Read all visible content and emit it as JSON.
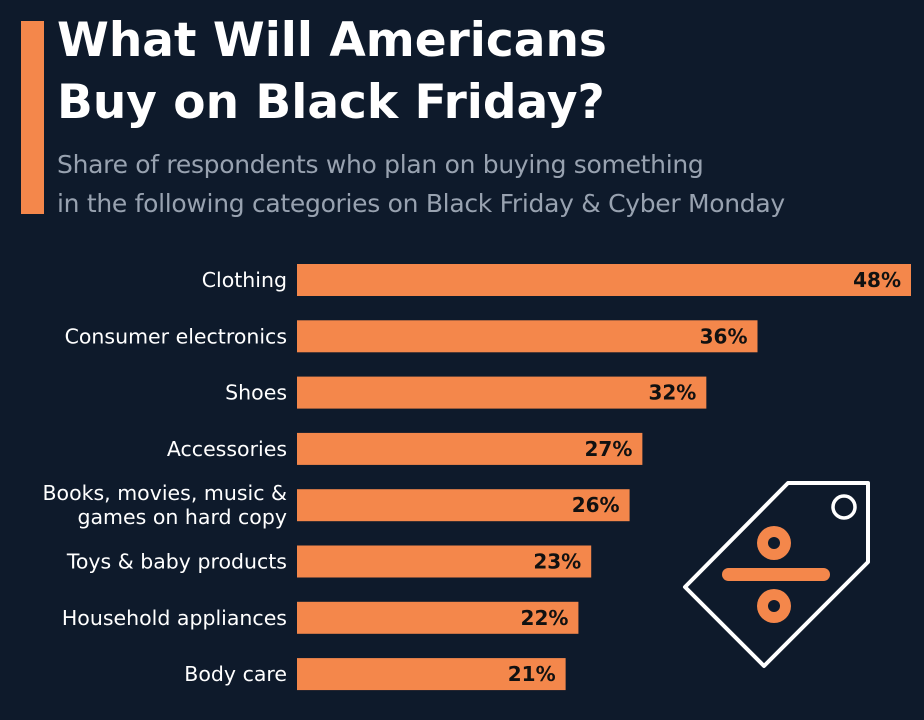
{
  "header": {
    "title_line1": "What Will Americans",
    "title_line2": "Buy on Black Friday?",
    "subtitle_line1": "Share of respondents who plan on buying something",
    "subtitle_line2": "in the following categories on Black Friday & Cyber Monday"
  },
  "colors": {
    "background": "#0e1a2b",
    "accent": "#f4874b",
    "bar": "#f4874b",
    "title": "#ffffff",
    "subtitle": "#98a2b0"
  },
  "icon": {
    "name": "price-tag-percent-icon"
  },
  "chart_data": {
    "type": "bar",
    "orientation": "horizontal",
    "categories": [
      [
        "Clothing"
      ],
      [
        "Consumer electronics"
      ],
      [
        "Shoes"
      ],
      [
        "Accessories"
      ],
      [
        "Books, movies, music &",
        "games on hard copy"
      ],
      [
        "Toys & baby products"
      ],
      [
        "Household appliances"
      ],
      [
        "Body care"
      ]
    ],
    "values": [
      48,
      36,
      32,
      27,
      26,
      23,
      22,
      21
    ],
    "value_labels": [
      "48%",
      "36%",
      "32%",
      "27%",
      "26%",
      "23%",
      "22%",
      "21%"
    ],
    "unit": "%",
    "xlim": [
      0,
      48
    ],
    "grid": false,
    "legend": "none"
  }
}
